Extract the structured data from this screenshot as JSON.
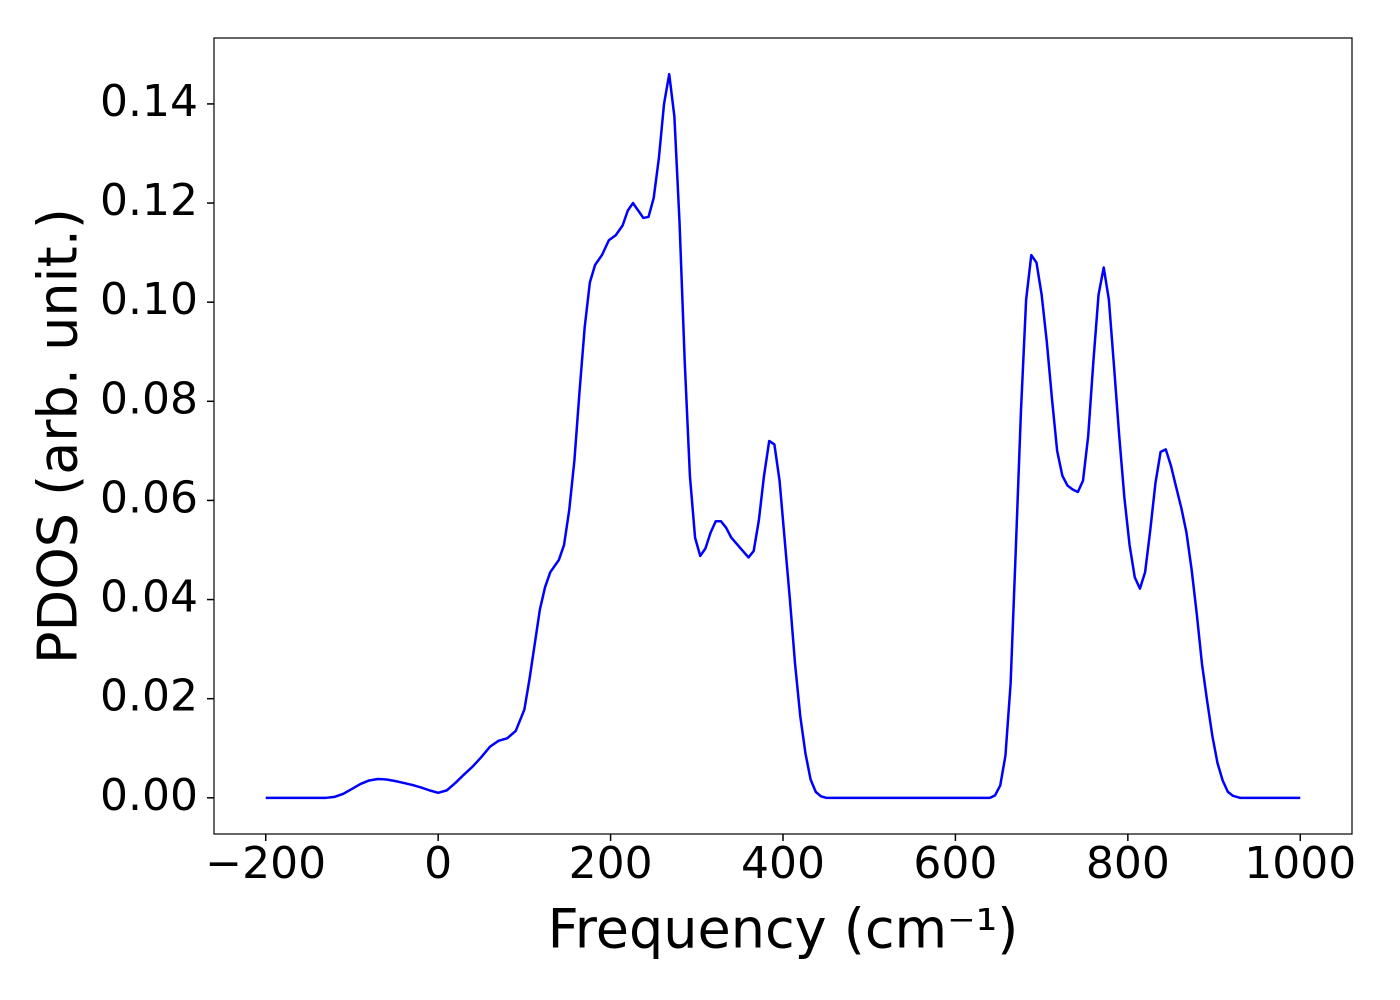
{
  "chart_data": {
    "type": "line",
    "x_label": "Frequency (cm⁻¹)",
    "y_label": "PDOS (arb. unit.)",
    "xlim": [
      -260,
      1060
    ],
    "ylim": [
      -0.0073,
      0.1533
    ],
    "xticks": [
      {
        "value": -200,
        "label": "−200"
      },
      0,
      200,
      400,
      600,
      800,
      1000
    ],
    "yticks": [
      {
        "value": 0,
        "label": "0.00"
      },
      {
        "value": 0.02,
        "label": "0.02"
      },
      {
        "value": 0.04,
        "label": "0.04"
      },
      {
        "value": 0.06,
        "label": "0.06"
      },
      {
        "value": 0.08,
        "label": "0.08"
      },
      {
        "value": 0.1,
        "label": "0.10"
      },
      {
        "value": 0.12,
        "label": "0.12"
      },
      {
        "value": 0.14,
        "label": "0.14"
      }
    ],
    "grid": false,
    "series": [
      {
        "color": "#0000ff",
        "x": [
          -200,
          -130,
          -120,
          -110,
          -100,
          -90,
          -80,
          -70,
          -60,
          -50,
          -40,
          -30,
          -20,
          -10,
          0,
          10,
          20,
          30,
          40,
          50,
          60,
          70,
          80,
          90,
          100,
          106,
          112,
          118,
          124,
          130,
          140,
          146,
          152,
          158,
          164,
          170,
          176,
          182,
          190,
          198,
          206,
          214,
          220,
          226,
          232,
          238,
          244,
          250,
          256,
          262,
          268,
          274,
          280,
          286,
          292,
          298,
          304,
          310,
          316,
          322,
          328,
          334,
          340,
          350,
          360,
          366,
          372,
          378,
          384,
          390,
          396,
          402,
          408,
          414,
          420,
          426,
          432,
          438,
          444,
          450,
          640,
          646,
          652,
          658,
          664,
          670,
          676,
          682,
          688,
          694,
          700,
          706,
          712,
          718,
          724,
          730,
          736,
          742,
          748,
          754,
          760,
          766,
          772,
          778,
          784,
          790,
          796,
          802,
          808,
          814,
          820,
          826,
          832,
          838,
          844,
          850,
          856,
          862,
          868,
          874,
          880,
          886,
          892,
          898,
          904,
          910,
          916,
          922,
          930,
          1000
        ],
        "values": [
          0,
          0,
          0.0002,
          0.0008,
          0.0018,
          0.0028,
          0.0035,
          0.0038,
          0.0037,
          0.0034,
          0.003,
          0.0026,
          0.0021,
          0.0015,
          0.001,
          0.0015,
          0.003,
          0.0047,
          0.0063,
          0.0082,
          0.0103,
          0.0115,
          0.012,
          0.0135,
          0.0178,
          0.024,
          0.031,
          0.038,
          0.0425,
          0.0455,
          0.048,
          0.051,
          0.058,
          0.068,
          0.082,
          0.095,
          0.104,
          0.1075,
          0.1095,
          0.1125,
          0.1135,
          0.1155,
          0.1185,
          0.12,
          0.1185,
          0.117,
          0.1172,
          0.121,
          0.129,
          0.14,
          0.146,
          0.1375,
          0.116,
          0.088,
          0.065,
          0.0525,
          0.0488,
          0.0503,
          0.0535,
          0.0558,
          0.0558,
          0.0545,
          0.0525,
          0.0505,
          0.0485,
          0.0498,
          0.056,
          0.065,
          0.072,
          0.0713,
          0.064,
          0.052,
          0.04,
          0.027,
          0.0165,
          0.009,
          0.0037,
          0.0012,
          0.0003,
          0,
          0,
          0.0005,
          0.0025,
          0.0085,
          0.023,
          0.05,
          0.078,
          0.1005,
          0.1095,
          0.108,
          0.1015,
          0.092,
          0.0805,
          0.07,
          0.065,
          0.063,
          0.0622,
          0.0617,
          0.064,
          0.073,
          0.088,
          0.1015,
          0.107,
          0.1005,
          0.087,
          0.073,
          0.0605,
          0.051,
          0.0445,
          0.0422,
          0.0455,
          0.054,
          0.0635,
          0.0698,
          0.0703,
          0.067,
          0.0627,
          0.0585,
          0.0535,
          0.046,
          0.037,
          0.027,
          0.0195,
          0.0125,
          0.007,
          0.0035,
          0.0012,
          0.0004,
          0,
          0
        ]
      }
    ]
  }
}
